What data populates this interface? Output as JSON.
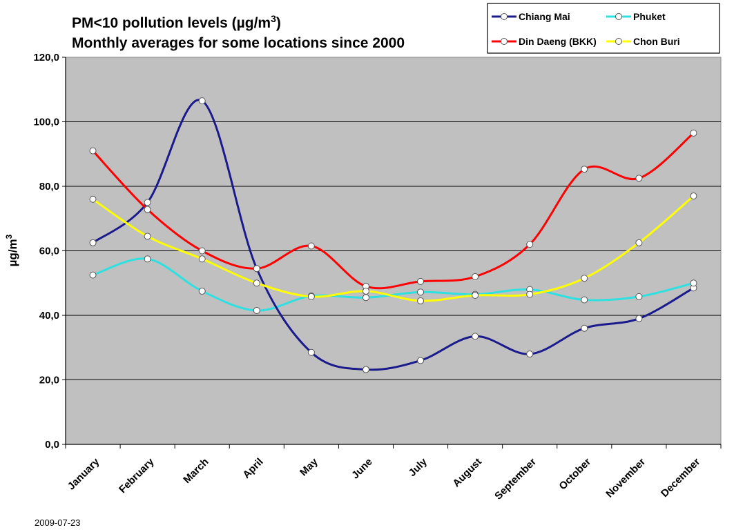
{
  "chart_data": {
    "type": "line",
    "title_line1": "PM<10 pollution levels (µg/m",
    "title_sup": "3",
    "title_line1_end": ")",
    "title_line2": "Monthly averages for some locations since 2000",
    "ylabel": "µg/m",
    "ylabel_sup": "3",
    "ylim": [
      0,
      120
    ],
    "yticks": [
      "0,0",
      "20,0",
      "40,0",
      "60,0",
      "80,0",
      "100,0",
      "120,0"
    ],
    "categories": [
      "January",
      "February",
      "March",
      "April",
      "May",
      "June",
      "July",
      "August",
      "September",
      "October",
      "November",
      "December"
    ],
    "grid": true,
    "legend_position": "top-right",
    "series": [
      {
        "name": "Chiang Mai",
        "color": "#1a1a8c",
        "values": [
          62.5,
          75,
          106.5,
          54.5,
          28.5,
          23.2,
          26,
          33.5,
          28,
          36,
          39,
          48.5
        ]
      },
      {
        "name": "Phuket",
        "color": "#2ee0e0",
        "values": [
          52.5,
          57.5,
          47.5,
          41.5,
          46,
          45.5,
          47.2,
          46.5,
          48,
          44.8,
          45.8,
          50
        ]
      },
      {
        "name": "Din Daeng (BKK)",
        "color": "#ff0000",
        "values": [
          91,
          72.8,
          60,
          54.5,
          61.5,
          49,
          50.5,
          52,
          62,
          85.3,
          82.5,
          96.5
        ]
      },
      {
        "name": "Chon Buri",
        "color": "#ffff00",
        "values": [
          76,
          64.5,
          57.5,
          50,
          45.8,
          47.5,
          44.5,
          46.2,
          46.5,
          51.5,
          62.5,
          77
        ]
      }
    ],
    "colors": {
      "plot_background": "#c0c0c0",
      "grid": "#000000",
      "marker_fill": "#ffffff",
      "marker_stroke": "#555555"
    }
  },
  "footer": {
    "date": "2009-07-23"
  }
}
